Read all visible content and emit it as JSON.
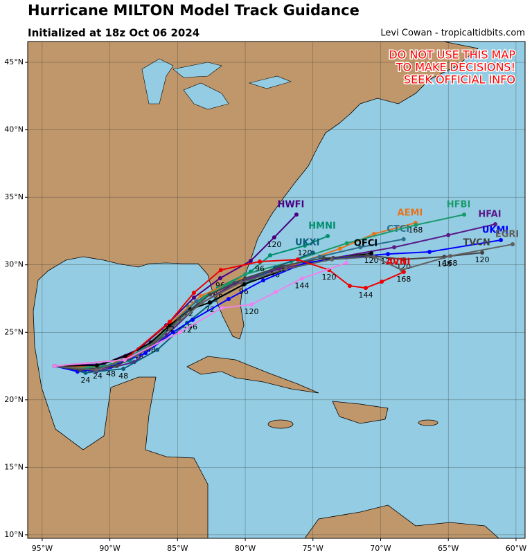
{
  "chart_data": {
    "type": "track-map",
    "title": "Hurricane MILTON Model Track Guidance",
    "subtitle": "Initialized at 18z Oct 06 2024",
    "credit": "Levi Cowan - tropicaltidbits.com",
    "warning": [
      "DO NOT USE THIS MAP",
      "TO MAKE DECISIONS!",
      "SEEK OFFICIAL INFO"
    ],
    "grid": true,
    "xlim": [
      -96.07,
      -59.33
    ],
    "ylim": [
      9.74,
      46.54
    ],
    "xticks": [
      {
        "value": -95,
        "label": "95°W"
      },
      {
        "value": -90,
        "label": "90°W"
      },
      {
        "value": -85,
        "label": "85°W"
      },
      {
        "value": -80,
        "label": "80°W"
      },
      {
        "value": -75,
        "label": "75°W"
      },
      {
        "value": -70,
        "label": "70°W"
      },
      {
        "value": -65,
        "label": "65°W"
      },
      {
        "value": -60,
        "label": "60°W"
      }
    ],
    "yticks": [
      {
        "value": 10,
        "label": "10°N"
      },
      {
        "value": 15,
        "label": "15°N"
      },
      {
        "value": 20,
        "label": "20°N"
      },
      {
        "value": 25,
        "label": "25°N"
      },
      {
        "value": 30,
        "label": "30°N"
      },
      {
        "value": 35,
        "label": "35°N"
      },
      {
        "value": 40,
        "label": "40°N"
      },
      {
        "value": 45,
        "label": "45°N"
      }
    ],
    "series": [
      {
        "name": "HWFI",
        "color": "#4b0082",
        "x": [
          -94.08,
          -90.45,
          -87.89,
          -85.84,
          -83.79,
          -81.85,
          -79.6,
          -77.86,
          -76.22
        ],
        "values": [
          22.5,
          22.65,
          23.73,
          25.52,
          27.57,
          29.01,
          30.29,
          32.03,
          33.72
        ],
        "labels": [
          null,
          null,
          "48",
          null,
          "72",
          "96",
          null,
          "120",
          null
        ]
      },
      {
        "name": "HMNI",
        "color": "#008f6e",
        "x": [
          -94.08,
          -90.9,
          -88.5,
          -86.2,
          -84.2,
          -82.0,
          -79.6,
          -78.16,
          -75.6,
          -73.91
        ],
        "values": [
          22.5,
          22.3,
          22.9,
          24.6,
          26.9,
          28.3,
          29.5,
          30.7,
          31.42,
          32.13
        ],
        "labels": [
          null,
          "24",
          null,
          null,
          "72",
          "96",
          null,
          null,
          "120",
          null
        ]
      },
      {
        "name": "AEMI",
        "color": "#e8731e",
        "x": [
          -94.08,
          -90.5,
          -87.7,
          -85.5,
          -83.3,
          -80.5,
          -77.0,
          -73.0,
          -70.49,
          -67.42
        ],
        "values": [
          22.5,
          22.4,
          23.6,
          25.7,
          27.7,
          28.9,
          29.8,
          31.2,
          32.29,
          33.11
        ],
        "labels": [
          null,
          null,
          null,
          null,
          null,
          null,
          null,
          null,
          null,
          "168"
        ]
      },
      {
        "name": "CTCI",
        "color": "#2b6f8f",
        "x": [
          -94.08,
          -91.5,
          -88.6,
          -86.0,
          -83.6,
          -80.8,
          -77.8,
          -74.5,
          -71.5,
          -68.3
        ],
        "values": [
          22.5,
          22.2,
          23.0,
          25.1,
          27.3,
          28.7,
          29.7,
          30.6,
          31.3,
          31.9
        ],
        "labels": [
          null,
          null,
          null,
          null,
          null,
          null,
          null,
          null,
          null,
          null
        ]
      },
      {
        "name": "HFBI",
        "color": "#1a9a6c",
        "x": [
          -94.08,
          -92.6,
          -89.9,
          -87.4,
          -85.3,
          -83.0,
          -80.0,
          -76.6,
          -72.5,
          -67.4,
          -63.83
        ],
        "values": [
          22.5,
          22.3,
          22.6,
          23.8,
          25.6,
          27.6,
          29.3,
          30.24,
          31.6,
          32.95,
          33.72
        ],
        "labels": [
          null,
          null,
          null,
          null,
          null,
          null,
          null,
          null,
          null,
          null,
          null
        ]
      },
      {
        "name": "HFAI",
        "color": "#5a1a8a",
        "x": [
          -94.08,
          -91.0,
          -88.2,
          -85.8,
          -83.5,
          -80.8,
          -77.5,
          -73.5,
          -69.0,
          -65.0,
          -61.53
        ],
        "values": [
          22.5,
          22.1,
          22.8,
          24.8,
          27.0,
          28.6,
          29.7,
          30.5,
          31.3,
          32.2,
          33.01
        ],
        "labels": [
          null,
          null,
          null,
          null,
          null,
          null,
          null,
          null,
          null,
          null,
          null
        ]
      },
      {
        "name": "UKXI",
        "color": "#0b5f7d",
        "x": [
          -94.08,
          -91.8,
          -89.0,
          -86.5,
          -84.3,
          -82.2,
          -80.0,
          -77.8,
          -75.0
        ],
        "values": [
          22.5,
          22.0,
          22.3,
          23.7,
          25.7,
          27.4,
          28.6,
          29.8,
          30.9
        ],
        "labels": [
          null,
          "24",
          "48",
          null,
          "72",
          null,
          null,
          "96",
          null
        ]
      },
      {
        "name": "OFCI",
        "color": "#000000",
        "x": [
          -94.08,
          -90.96,
          -88.86,
          -86.97,
          -85.58,
          -84.05,
          -82.62,
          -80.11,
          -77.14,
          -74.07,
          -70.69
        ],
        "values": [
          22.5,
          22.55,
          23.22,
          24.24,
          25.52,
          26.7,
          27.21,
          28.55,
          29.62,
          30.39,
          30.85
        ],
        "labels": [
          null,
          null,
          null,
          "48",
          null,
          null,
          "72",
          "96",
          null,
          null,
          "120"
        ]
      },
      {
        "name": "UKMI",
        "color": "#0000ff",
        "x": [
          -94.08,
          -92.39,
          -89.93,
          -87.37,
          -85.33,
          -83.89,
          -81.23,
          -78.67,
          -75.6,
          -72.53,
          -69.46,
          -66.39,
          -61.12
        ],
        "values": [
          22.5,
          22.09,
          22.45,
          23.47,
          25.01,
          25.93,
          27.47,
          28.85,
          30.14,
          30.55,
          30.8,
          30.96,
          31.83
        ],
        "labels": [
          null,
          null,
          "48",
          null,
          null,
          "96",
          null,
          null,
          null,
          null,
          "120",
          null,
          null
        ]
      },
      {
        "name": "TVCN",
        "color": "#444444",
        "x": [
          -94.08,
          -92.2,
          -89.5,
          -87.0,
          -84.9,
          -82.6,
          -80.0,
          -77.3,
          -74.2,
          -71.0,
          -68.3,
          -65.3,
          -62.5
        ],
        "values": [
          22.5,
          22.2,
          22.5,
          23.9,
          26.0,
          27.8,
          29.0,
          29.9,
          30.5,
          30.7,
          30.4,
          30.6,
          30.9
        ],
        "labels": [
          null,
          null,
          null,
          null,
          null,
          null,
          null,
          null,
          null,
          null,
          "120",
          "168",
          "120"
        ]
      },
      {
        "name": "EGRI",
        "color": "#606060",
        "x": [
          -94.08,
          -91.0,
          -88.0,
          -85.6,
          -83.2,
          -80.3,
          -77.0,
          -73.6,
          -70.5,
          -68.44,
          -64.86,
          -60.25
        ],
        "values": [
          22.5,
          22.2,
          23.3,
          25.2,
          27.2,
          28.7,
          29.7,
          30.4,
          30.6,
          29.62,
          30.65,
          31.52
        ],
        "labels": [
          null,
          null,
          null,
          null,
          null,
          null,
          null,
          null,
          null,
          null,
          "168",
          null
        ]
      },
      {
        "name": "AVNI",
        "color": "#ee0000",
        "x": [
          -94.08,
          -88.91,
          -85.58,
          -83.79,
          -81.8,
          -78.93,
          -76.12,
          -73.81,
          -72.28,
          -71.1,
          -69.92,
          -68.29
        ],
        "values": [
          22.5,
          22.96,
          25.78,
          27.93,
          29.62,
          30.24,
          30.39,
          29.62,
          28.44,
          28.29,
          28.75,
          29.47
        ],
        "labels": [
          null,
          null,
          "72",
          null,
          null,
          "96",
          null,
          "120",
          null,
          "144",
          null,
          "168"
        ]
      },
      {
        "color": "#ee82ee",
        "x": [
          -94.08,
          -88.91,
          -84.82,
          -81.75,
          -79.54,
          -77.75,
          -75.81,
          -72.53
        ],
        "values": [
          22.5,
          22.96,
          25.01,
          26.8,
          27.06,
          27.98,
          28.99,
          30.14
        ],
        "labels": [
          null,
          null,
          null,
          null,
          "120",
          null,
          "144",
          null
        ]
      }
    ]
  }
}
